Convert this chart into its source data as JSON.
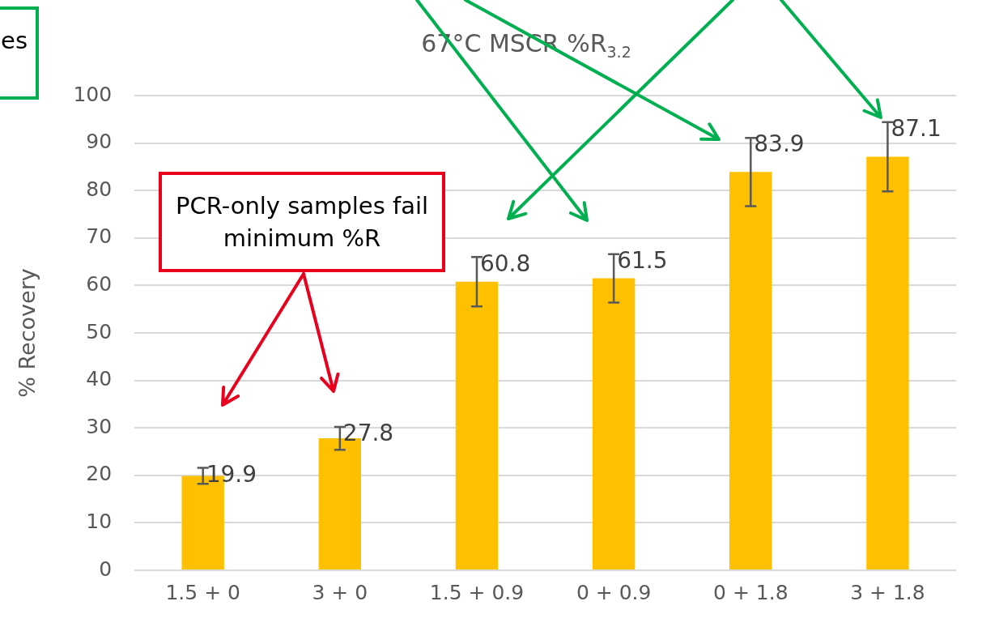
{
  "chart_data": {
    "type": "bar",
    "title": "67°C MSCR %R$_{3.2}$",
    "ylabel": "% Recovery",
    "categories": [
      "1.5 + 0",
      "3 + 0",
      "1.5 + 0.9",
      "0 + 0.9",
      "0 + 1.8",
      "3 + 1.8"
    ],
    "values": [
      19.9,
      27.8,
      60.8,
      61.5,
      83.9,
      87.1
    ],
    "errors": [
      1.7,
      2.4,
      5.2,
      5.1,
      7.2,
      7.3
    ],
    "color": "#ffc000",
    "data_labels": true,
    "ylim": [
      0,
      100
    ],
    "yticks": [
      0,
      10,
      20,
      30,
      40,
      50,
      60,
      70,
      80,
      90,
      100
    ],
    "grid": "y",
    "legend": false,
    "annotations": [
      "es",
      "PCR-only samples fail minimum %R"
    ]
  }
}
